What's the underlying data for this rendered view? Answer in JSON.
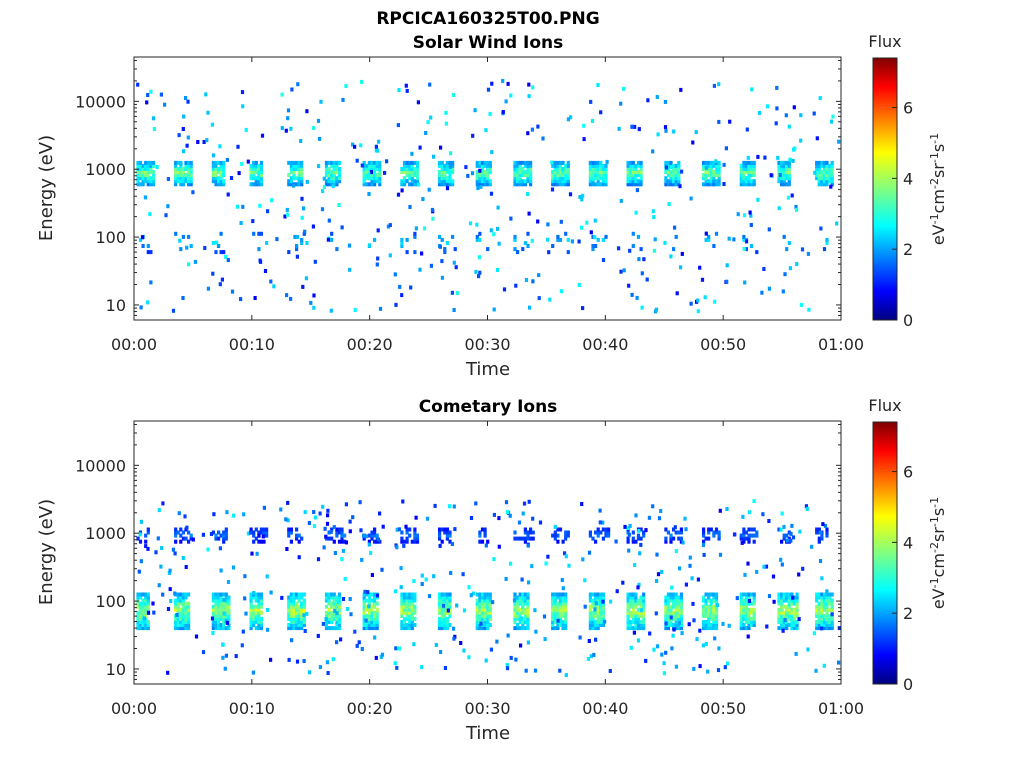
{
  "figure_title": "RPCICA160325T00.PNG",
  "chart_data": [
    {
      "type": "heatmap",
      "title": "Solar Wind Ions",
      "xlabel": "Time",
      "ylabel": "Energy (eV)",
      "x_ticks": [
        "00:00",
        "00:10",
        "00:20",
        "00:30",
        "00:40",
        "00:50",
        "01:00"
      ],
      "x_range_minutes": [
        0,
        60
      ],
      "y_scale": "log",
      "y_range": [
        6,
        45000
      ],
      "y_ticks": [
        10,
        100,
        1000,
        10000
      ],
      "y_tick_labels": [
        "10",
        "100",
        "1000",
        "10000"
      ],
      "colorbar": {
        "title": "Flux",
        "unit": "eV-1cm-2sr-1s-1",
        "range": [
          0,
          7.4
        ],
        "ticks": [
          0,
          2,
          4,
          6
        ],
        "tick_labels": [
          "0",
          "2",
          "4",
          "6"
        ],
        "colormap": "jet"
      },
      "dominant_band": {
        "energy_ev_range": [
          600,
          1300
        ],
        "period_minutes": 3.2,
        "peak_flux": 3.6
      },
      "secondary_band": {
        "energy_ev_range": [
          60,
          120
        ],
        "peak_flux": 2.5
      },
      "sparse_signal": {
        "energy_ev_range": [
          8,
          20000
        ],
        "flux_range": [
          0.8,
          3.0
        ]
      }
    },
    {
      "type": "heatmap",
      "title": "Cometary Ions",
      "xlabel": "Time",
      "ylabel": "Energy (eV)",
      "x_ticks": [
        "00:00",
        "00:10",
        "00:20",
        "00:30",
        "00:40",
        "00:50",
        "01:00"
      ],
      "x_range_minutes": [
        0,
        60
      ],
      "y_scale": "log",
      "y_range": [
        6,
        45000
      ],
      "y_ticks": [
        10,
        100,
        1000,
        10000
      ],
      "y_tick_labels": [
        "10",
        "100",
        "1000",
        "10000"
      ],
      "colorbar": {
        "title": "Flux",
        "unit": "eV-1cm-2sr-1s-1",
        "range": [
          0,
          7.4
        ],
        "ticks": [
          0,
          2,
          4,
          6
        ],
        "tick_labels": [
          "0",
          "2",
          "4",
          "6"
        ],
        "colormap": "jet"
      },
      "dominant_band": {
        "energy_ev_range": [
          40,
          130
        ],
        "period_minutes": 3.2,
        "peak_flux": 4.0
      },
      "secondary_band": {
        "energy_ev_range": [
          750,
          1200
        ],
        "peak_flux": 1.8
      },
      "sparse_signal": {
        "energy_ev_range": [
          8,
          3000
        ],
        "flux_range": [
          0.8,
          2.8
        ]
      }
    }
  ]
}
